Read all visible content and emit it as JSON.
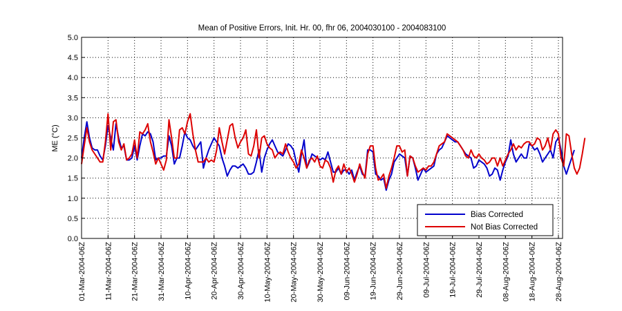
{
  "chart_data": {
    "type": "line",
    "title": "Mean of Positive Errors, Init. Hr. 00, fhr 06, 2004030100 - 2004083100",
    "xlabel": "",
    "ylabel": "ME (°C)",
    "ylim": [
      0.0,
      5.0
    ],
    "yticks": [
      "0.0",
      "0.5",
      "1.0",
      "1.5",
      "2.0",
      "2.5",
      "3.0",
      "3.5",
      "4.0",
      "4.5",
      "5.0"
    ],
    "xlim_days": [
      0,
      182
    ],
    "xticks": [
      {
        "day": 0,
        "label": "01-Mar-2004-06Z"
      },
      {
        "day": 10,
        "label": "11-Mar-2004-06Z"
      },
      {
        "day": 20,
        "label": "21-Mar-2004-06Z"
      },
      {
        "day": 30,
        "label": "31-Mar-2004-06Z"
      },
      {
        "day": 40,
        "label": "10-Apr-2004-06Z"
      },
      {
        "day": 50,
        "label": "20-Apr-2004-06Z"
      },
      {
        "day": 60,
        "label": "30-Apr-2004-06Z"
      },
      {
        "day": 70,
        "label": "10-May-2004-06Z"
      },
      {
        "day": 80,
        "label": "20-May-2004-06Z"
      },
      {
        "day": 90,
        "label": "30-May-2004-06Z"
      },
      {
        "day": 100,
        "label": "09-Jun-2004-06Z"
      },
      {
        "day": 110,
        "label": "19-Jun-2004-06Z"
      },
      {
        "day": 120,
        "label": "29-Jun-2004-06Z"
      },
      {
        "day": 130,
        "label": "09-Jul-2004-06Z"
      },
      {
        "day": 140,
        "label": "19-Jul-2004-06Z"
      },
      {
        "day": 150,
        "label": "29-Jul-2004-06Z"
      },
      {
        "day": 160,
        "label": "08-Aug-2004-06Z"
      },
      {
        "day": 170,
        "label": "18-Aug-2004-06Z"
      },
      {
        "day": 180,
        "label": "28-Aug-2004-06Z"
      }
    ],
    "grid": true,
    "legend_position": "bottom-right",
    "series": [
      {
        "name": "Bias Corrected",
        "color": "#0000cc",
        "values": [
          2.0,
          2.5,
          2.9,
          2.5,
          2.25,
          2.2,
          2.2,
          2.05,
          1.95,
          2.3,
          2.8,
          2.5,
          2.2,
          2.85,
          2.5,
          2.25,
          2.3,
          1.95,
          1.95,
          2.0,
          2.3,
          1.95,
          2.3,
          2.6,
          2.55,
          2.65,
          2.6,
          2.4,
          1.95,
          2.0,
          2.0,
          2.05,
          2.05,
          2.55,
          2.3,
          1.85,
          2.0,
          2.0,
          2.3,
          2.65,
          2.5,
          2.45,
          2.3,
          2.2,
          2.3,
          2.4,
          1.75,
          2.0,
          2.2,
          2.35,
          2.5,
          2.4,
          2.3,
          2.0,
          1.8,
          1.55,
          1.7,
          1.8,
          1.8,
          1.75,
          1.8,
          1.85,
          1.75,
          1.6,
          1.6,
          1.65,
          1.9,
          2.2,
          1.65,
          2.0,
          2.2,
          2.35,
          2.45,
          2.3,
          2.15,
          2.1,
          2.05,
          2.2,
          2.35,
          2.3,
          2.2,
          1.9,
          1.65,
          2.1,
          2.45,
          1.75,
          1.9,
          2.1,
          2.05,
          2.0,
          1.95,
          2.0,
          1.95,
          2.15,
          1.9,
          1.65,
          1.65,
          1.75,
          1.6,
          1.7,
          1.7,
          1.6,
          1.7,
          1.45,
          1.65,
          1.8,
          1.6,
          1.55,
          2.2,
          2.2,
          2.15,
          1.6,
          1.55,
          1.45,
          1.5,
          1.2,
          1.45,
          1.6,
          1.9,
          2.0,
          2.1,
          2.05,
          2.0,
          1.55,
          2.05,
          2.0,
          1.75,
          1.45,
          1.6,
          1.75,
          1.65,
          1.7,
          1.75,
          1.8,
          2.1,
          2.2,
          2.25,
          2.4,
          2.55,
          2.5,
          2.45,
          2.4,
          2.4,
          2.3,
          2.2,
          2.1,
          2.05,
          2.0,
          1.75,
          1.8,
          1.95,
          1.9,
          1.85,
          1.75,
          1.55,
          1.6,
          1.75,
          1.7,
          1.45,
          1.7,
          1.9,
          2.05,
          2.45,
          2.1,
          1.9,
          2.0,
          2.1,
          2.0,
          2.0,
          2.35,
          2.3,
          2.2,
          2.25,
          2.1,
          1.9,
          2.0,
          2.1,
          2.2,
          2.0,
          2.4,
          2.5,
          2.2,
          1.8,
          1.6,
          1.8,
          2.0,
          2.2
        ]
      },
      {
        "name": "Not Bias Corrected",
        "color": "#dd0000",
        "values": [
          1.85,
          2.3,
          2.75,
          2.4,
          2.2,
          2.1,
          2.0,
          1.9,
          1.9,
          2.4,
          3.1,
          2.2,
          2.9,
          2.95,
          2.4,
          2.2,
          2.35,
          1.95,
          2.0,
          2.1,
          2.45,
          2.0,
          2.65,
          2.6,
          2.7,
          2.85,
          2.4,
          2.15,
          1.85,
          2.0,
          1.85,
          1.7,
          1.95,
          2.95,
          2.5,
          2.0,
          2.0,
          2.7,
          2.75,
          2.6,
          2.9,
          3.1,
          2.6,
          2.2,
          1.9,
          1.9,
          1.9,
          2.0,
          1.9,
          1.95,
          1.9,
          2.2,
          2.75,
          2.4,
          2.1,
          2.45,
          2.8,
          2.85,
          2.5,
          2.25,
          2.4,
          2.5,
          2.7,
          2.1,
          2.05,
          2.3,
          2.7,
          2.0,
          2.5,
          2.55,
          2.35,
          2.25,
          2.2,
          2.0,
          2.1,
          2.15,
          2.1,
          2.35,
          2.15,
          2.0,
          1.9,
          1.75,
          1.85,
          2.2,
          2.0,
          1.75,
          1.95,
          2.0,
          1.9,
          2.05,
          1.8,
          1.75,
          1.95,
          1.9,
          1.75,
          1.4,
          1.7,
          1.8,
          1.6,
          1.85,
          1.65,
          1.75,
          1.6,
          1.4,
          1.6,
          1.85,
          1.65,
          1.5,
          2.1,
          2.3,
          2.3,
          1.75,
          1.45,
          1.5,
          1.6,
          1.25,
          1.55,
          1.75,
          2.0,
          2.3,
          2.3,
          2.15,
          2.2,
          1.55,
          2.05,
          2.0,
          1.8,
          1.65,
          1.7,
          1.75,
          1.7,
          1.8,
          1.8,
          1.9,
          2.1,
          2.3,
          2.35,
          2.4,
          2.6,
          2.55,
          2.5,
          2.45,
          2.4,
          2.3,
          2.2,
          2.05,
          2.0,
          2.2,
          2.05,
          2.0,
          2.1,
          2.0,
          1.95,
          1.85,
          1.9,
          2.0,
          2.0,
          1.8,
          2.0,
          1.8,
          1.95,
          2.1,
          2.2,
          2.35,
          2.2,
          2.3,
          2.25,
          2.35,
          2.4,
          2.4,
          2.3,
          2.35,
          2.5,
          2.45,
          2.2,
          2.3,
          2.5,
          2.2,
          2.6,
          2.7,
          2.6,
          2.0,
          1.8,
          2.6,
          2.55,
          2.1,
          1.75,
          1.6,
          1.75,
          2.1,
          2.5
        ]
      }
    ]
  }
}
